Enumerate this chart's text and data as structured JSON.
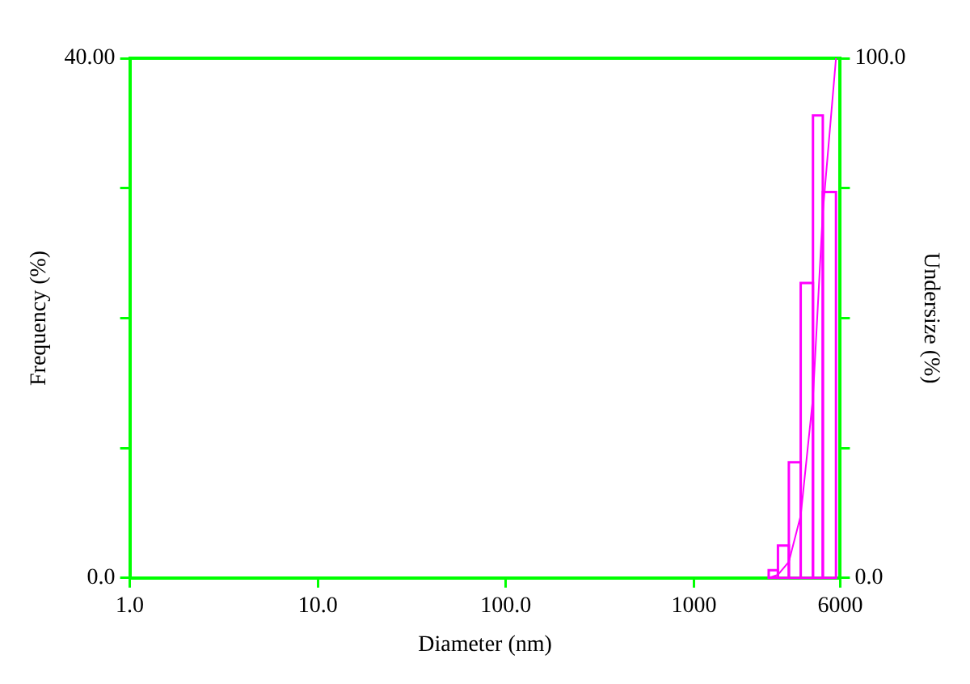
{
  "chart_data": {
    "type": "histogram",
    "xlabel": "Diameter (nm)",
    "ylabel": "Frequency (%)",
    "y2label": "Undersize (%)",
    "log": "x",
    "grid": false,
    "legend": false,
    "xlim": [
      1,
      6000
    ],
    "xticks": [
      {
        "value": 1,
        "label": "1.0"
      },
      {
        "value": 10,
        "label": "10.0"
      },
      {
        "value": 100,
        "label": "100.0"
      },
      1000,
      6000
    ],
    "ylim": [
      0,
      40
    ],
    "yticks": [
      {
        "value": 0,
        "label": "0.0"
      },
      {
        "value": 10,
        "label": null
      },
      {
        "value": 20,
        "label": null
      },
      {
        "value": 30,
        "label": null
      },
      {
        "value": 40,
        "label": "40.00"
      }
    ],
    "y2lim": [
      0,
      100
    ],
    "y2ticks": [
      {
        "value": 0,
        "label": "0.0"
      },
      {
        "value": 25,
        "label": null
      },
      {
        "value": 50,
        "label": null
      },
      {
        "value": 75,
        "label": null
      },
      {
        "value": 100,
        "label": "100.0"
      }
    ],
    "bins": [
      2500,
      2800,
      3200,
      3700,
      4300,
      4850,
      5700
    ],
    "values": [
      0.6,
      2.5,
      8.9,
      22.7,
      35.6,
      29.7
    ],
    "color": "#ff00ff",
    "series": [
      {
        "type": "line",
        "axis": "y2",
        "color": "#ff00ff",
        "x": [
          2500,
          2800,
          3200,
          3700,
          4300,
          4850,
          5700
        ],
        "values": [
          0,
          0.6,
          3.1,
          12,
          34.7,
          70.3,
          100
        ]
      }
    ]
  }
}
